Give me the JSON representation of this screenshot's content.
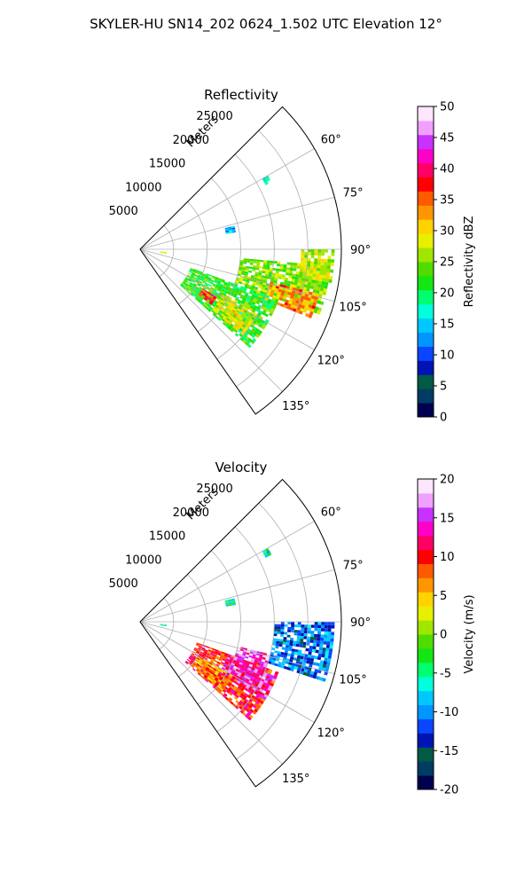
{
  "suptitle": "SKYLER-HU  SN14_202  0624_1.502 UTC Elevation 12°",
  "colors": {
    "grid": "#b0b0b0",
    "reflectivity_scale": [
      "#000050",
      "#003c64",
      "#005a46",
      "#0014b4",
      "#0a46ff",
      "#0096ff",
      "#00c8ff",
      "#00ffdc",
      "#00ff6e",
      "#14e614",
      "#50dc00",
      "#a0e600",
      "#e6f000",
      "#ffd200",
      "#ff9600",
      "#ff5a00",
      "#ff0000",
      "#ff0064",
      "#ff00c8",
      "#c832ff",
      "#f0a0ff",
      "#ffe6ff"
    ],
    "velocity_scale": [
      "#000050",
      "#003c64",
      "#005a46",
      "#0014b4",
      "#0a46ff",
      "#0096ff",
      "#00c8ff",
      "#00ffdc",
      "#00ff6e",
      "#14e614",
      "#50dc00",
      "#a0e600",
      "#e6f000",
      "#ffd200",
      "#ff9600",
      "#ff5a00",
      "#ff0000",
      "#ff0064",
      "#ff00c8",
      "#c832ff",
      "#f0a0ff",
      "#ffe6ff"
    ]
  },
  "chart_data": [
    {
      "type": "heatmap",
      "title": "Reflectivity",
      "projection": "polar-sector",
      "radial_label": "Meters",
      "range_rings": [
        5000,
        10000,
        15000,
        20000,
        25000
      ],
      "rmax": 30000,
      "azimuth_range_deg": [
        45,
        145
      ],
      "azimuth_ticks": [
        "60°",
        "75°",
        "90°",
        "105°",
        "120°",
        "135°"
      ],
      "azimuth_tick_values": [
        60,
        75,
        90,
        105,
        120,
        135
      ],
      "grid": true,
      "colorbar": {
        "label": "Reflectivity dBZ",
        "range": [
          0,
          50
        ],
        "ticks": [
          "0",
          "5",
          "10",
          "15",
          "20",
          "25",
          "30",
          "35",
          "40",
          "45",
          "50"
        ]
      },
      "echo_regions": [
        {
          "az": [
            95,
            110
          ],
          "r": [
            15000,
            28500
          ],
          "value": 25
        },
        {
          "az": [
            104,
            112
          ],
          "r": [
            20000,
            27500
          ],
          "value": 33
        },
        {
          "az": [
            90,
            100
          ],
          "r": [
            24000,
            29000
          ],
          "value": 27
        },
        {
          "az": [
            110,
            132
          ],
          "r": [
            8000,
            22000
          ],
          "value": 22
        },
        {
          "az": [
            118,
            130
          ],
          "r": [
            14000,
            20000
          ],
          "value": 28
        },
        {
          "az": [
            122,
            128
          ],
          "r": [
            11000,
            13500
          ],
          "value": 36
        },
        {
          "az": [
            60,
            63
          ],
          "r": [
            21000,
            22000
          ],
          "value": 18
        },
        {
          "az": [
            76,
            80
          ],
          "r": [
            13000,
            14500
          ],
          "value": 15
        },
        {
          "az": [
            96,
            100
          ],
          "r": [
            3000,
            4000
          ],
          "value": 27
        }
      ]
    },
    {
      "type": "heatmap",
      "title": "Velocity",
      "projection": "polar-sector",
      "radial_label": "Meters",
      "range_rings": [
        5000,
        10000,
        15000,
        20000,
        25000
      ],
      "rmax": 30000,
      "azimuth_range_deg": [
        45,
        145
      ],
      "azimuth_ticks": [
        "60°",
        "75°",
        "90°",
        "105°",
        "120°",
        "135°"
      ],
      "azimuth_tick_values": [
        60,
        75,
        90,
        105,
        120,
        135
      ],
      "grid": true,
      "colorbar": {
        "label": "Velocity (m/s)",
        "range": [
          -20,
          20
        ],
        "ticks": [
          "-20",
          "-15",
          "-10",
          "-5",
          "0",
          "5",
          "10",
          "15",
          "20"
        ]
      },
      "echo_regions": [
        {
          "az": [
            90,
            108
          ],
          "r": [
            20000,
            29000
          ],
          "value": -11
        },
        {
          "az": [
            110,
            132
          ],
          "r": [
            9000,
            22000
          ],
          "value": 10
        },
        {
          "az": [
            112,
            122
          ],
          "r": [
            14000,
            22000
          ],
          "value": 14
        },
        {
          "az": [
            120,
            130
          ],
          "r": [
            10000,
            16000
          ],
          "value": 7
        },
        {
          "az": [
            104,
            112
          ],
          "r": [
            15000,
            20000
          ],
          "value": 15
        },
        {
          "az": [
            60,
            63
          ],
          "r": [
            21000,
            22000
          ],
          "value": -6
        },
        {
          "az": [
            76,
            80
          ],
          "r": [
            13000,
            14500
          ],
          "value": -5
        },
        {
          "az": [
            96,
            100
          ],
          "r": [
            3000,
            4000
          ],
          "value": -4
        }
      ]
    }
  ]
}
